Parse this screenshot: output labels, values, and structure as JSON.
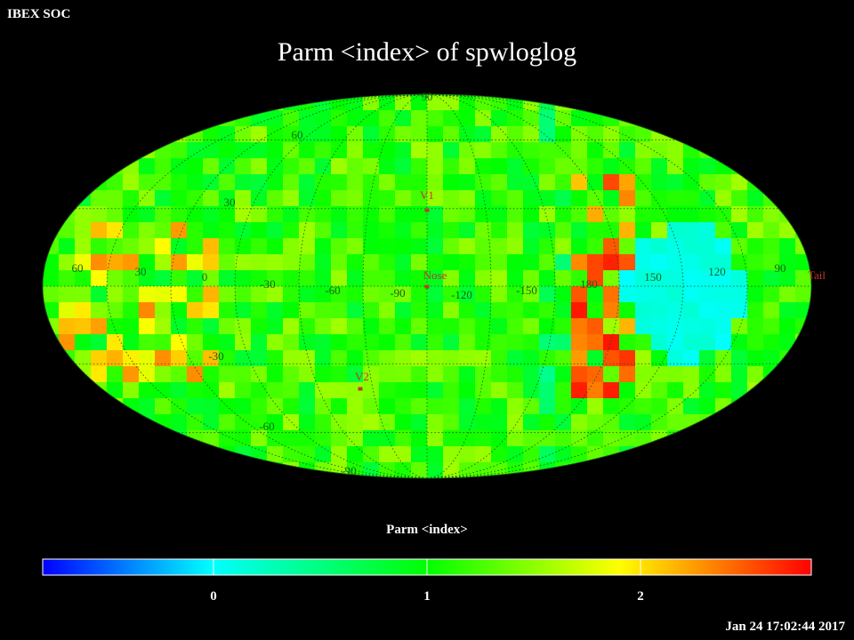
{
  "header": {
    "org": "IBEX SOC",
    "title": "Parm  <index> of spwloglog",
    "timestamp": "Jan 24 17:02:44 2017"
  },
  "colorbar": {
    "label": "Parm  <index>",
    "min": -0.8,
    "max": 2.8,
    "ticks": [
      "0",
      "1",
      "2"
    ],
    "colors": [
      "#0000ff",
      "#00ffff",
      "#00ff00",
      "#ffff00",
      "#ff0000"
    ]
  },
  "map": {
    "projection": "Mollweide",
    "longitude_labels": [
      "60",
      "30",
      "0",
      "-30",
      "-60",
      "-90",
      "-120",
      "-150",
      "180",
      "150",
      "120",
      "90"
    ],
    "latitude_labels": [
      "90",
      "60",
      "30",
      "-30",
      "-60",
      "-90"
    ],
    "markers": [
      {
        "label": "V1",
        "color": "#c0392b"
      },
      {
        "label": "Nose",
        "color": "#c0392b"
      },
      {
        "label": "V2",
        "color": "#c0392b"
      },
      {
        "label": "Tail",
        "color": "#c0392b"
      }
    ]
  }
}
